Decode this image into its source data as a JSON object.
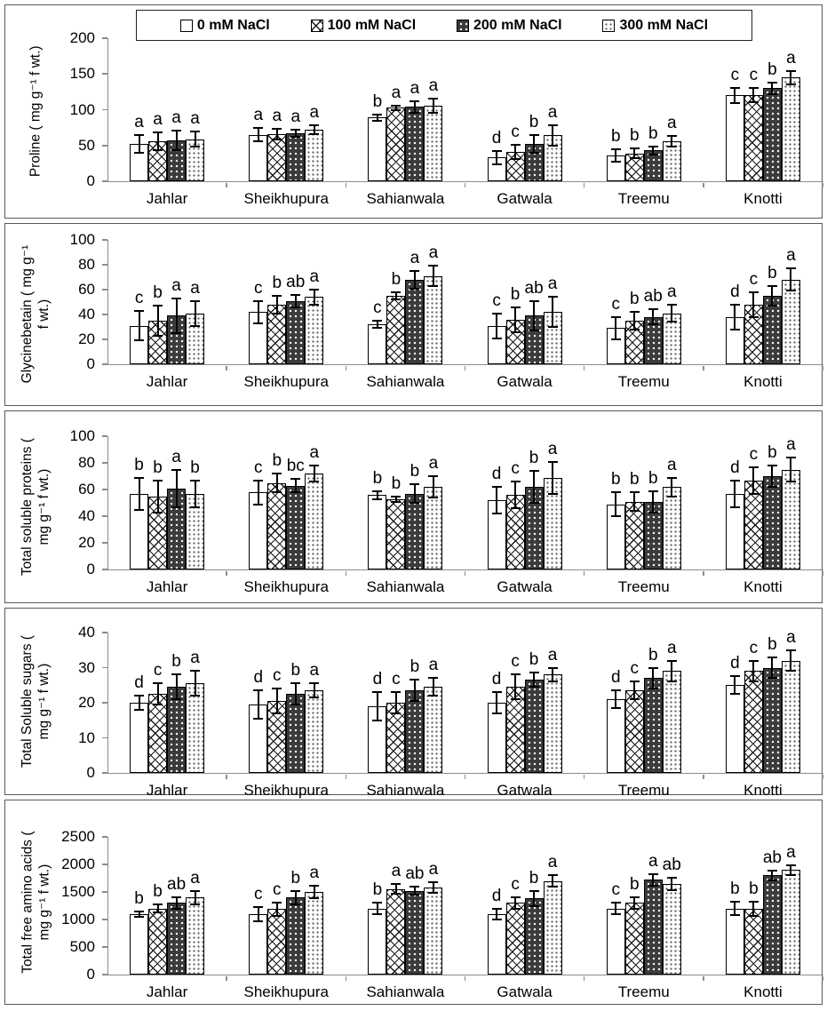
{
  "legend": {
    "items": [
      {
        "label": "0 mM NaCl",
        "pattern": "pat-plain"
      },
      {
        "label": "100 mM NaCl",
        "pattern": "pat-cross"
      },
      {
        "label": "200 mM NaCl",
        "pattern": "pat-darkdot"
      },
      {
        "label": "300 mM NaCl",
        "pattern": "pat-lightdot"
      }
    ],
    "position": "top"
  },
  "colors": {
    "bar_border": "#000000",
    "axis": "#8c8c8c",
    "dark_fill": "#3b3b3b",
    "background": "#ffffff"
  },
  "chart_data": [
    {
      "type": "bar",
      "title": "Proline",
      "ylabel_lines": [
        "Proline ( mg g⁻¹ f wt.)"
      ],
      "ylim": [
        0,
        200
      ],
      "yticks": [
        0,
        50,
        100,
        150,
        200
      ],
      "grid": false,
      "categories": [
        "Jahlar",
        "Sheikhupura",
        "Sahianwala",
        "Gatwala",
        "Treemu",
        "Knotti"
      ],
      "series": [
        {
          "name": "0 mM NaCl",
          "values": [
            52,
            65,
            89,
            33,
            36,
            120
          ],
          "errors": [
            12,
            9,
            4,
            9,
            9,
            11
          ],
          "letters": [
            "a",
            "a",
            "b",
            "d",
            "b",
            "c"
          ]
        },
        {
          "name": "100 mM NaCl",
          "values": [
            56,
            66,
            103,
            41,
            39,
            120
          ],
          "errors": [
            12,
            7,
            3,
            10,
            7,
            10
          ],
          "letters": [
            "a",
            "a",
            "a",
            "c",
            "b",
            "c"
          ]
        },
        {
          "name": "200 mM NaCl",
          "values": [
            57,
            67,
            104,
            52,
            43,
            130
          ],
          "errors": [
            14,
            5,
            8,
            12,
            6,
            8
          ],
          "letters": [
            "a",
            "a",
            "a",
            "b",
            "b",
            "b"
          ]
        },
        {
          "name": "300 mM NaCl",
          "values": [
            59,
            72,
            106,
            64,
            56,
            145
          ],
          "errors": [
            10,
            6,
            10,
            14,
            7,
            9
          ],
          "letters": [
            "a",
            "a",
            "a",
            "a",
            "a",
            "a"
          ]
        }
      ]
    },
    {
      "type": "bar",
      "title": "Glycinebetain",
      "ylabel_lines": [
        "Glycinebetain ( mg g⁻¹",
        "f wt.)"
      ],
      "ylim": [
        0,
        100
      ],
      "yticks": [
        0,
        20,
        40,
        60,
        80,
        100
      ],
      "grid": false,
      "categories": [
        "Jahlar",
        "Sheikhupura",
        "Sahianwala",
        "Gatwala",
        "Treemu",
        "Knotti"
      ],
      "series": [
        {
          "name": "0 mM NaCl",
          "values": [
            31,
            42,
            32,
            31,
            29,
            38
          ],
          "errors": [
            12,
            9,
            3,
            10,
            9,
            10
          ],
          "letters": [
            "c",
            "c",
            "c",
            "c",
            "c",
            "d"
          ]
        },
        {
          "name": "100 mM NaCl",
          "values": [
            35,
            48,
            55,
            36,
            35,
            48
          ],
          "errors": [
            12,
            7,
            3,
            10,
            7,
            10
          ],
          "letters": [
            "b",
            "b",
            "b",
            "b",
            "b",
            "c"
          ]
        },
        {
          "name": "200 mM NaCl",
          "values": [
            39,
            51,
            68,
            39,
            38,
            55
          ],
          "errors": [
            14,
            5,
            7,
            12,
            6,
            8
          ],
          "letters": [
            "a",
            "ab",
            "a",
            "ab",
            "ab",
            "b"
          ]
        },
        {
          "name": "300 mM NaCl",
          "values": [
            41,
            54,
            71,
            42,
            41,
            68
          ],
          "errors": [
            10,
            6,
            8,
            12,
            7,
            9
          ],
          "letters": [
            "a",
            "a",
            "a",
            "a",
            "a",
            "a"
          ]
        }
      ]
    },
    {
      "type": "bar",
      "title": "Total soluble proteins",
      "ylabel_lines": [
        "Total soluble proteins (",
        "mg g⁻¹ f wt.)"
      ],
      "ylim": [
        0,
        100
      ],
      "yticks": [
        0,
        20,
        40,
        60,
        80,
        100
      ],
      "grid": false,
      "categories": [
        "Jahlar",
        "Sheikhupura",
        "Sahianwala",
        "Gatwala",
        "Treemu",
        "Knotti"
      ],
      "series": [
        {
          "name": "0 mM NaCl",
          "values": [
            57,
            58,
            56,
            52,
            49,
            57
          ],
          "errors": [
            12,
            9,
            3,
            10,
            9,
            10
          ],
          "letters": [
            "b",
            "c",
            "b",
            "d",
            "b",
            "d"
          ]
        },
        {
          "name": "100 mM NaCl",
          "values": [
            55,
            65,
            53,
            56,
            51,
            67
          ],
          "errors": [
            12,
            7,
            2,
            10,
            7,
            10
          ],
          "letters": [
            "b",
            "b",
            "b",
            "c",
            "b",
            "c"
          ]
        },
        {
          "name": "200 mM NaCl",
          "values": [
            61,
            63,
            57,
            62,
            51,
            70
          ],
          "errors": [
            14,
            5,
            7,
            12,
            8,
            8
          ],
          "letters": [
            "a",
            "bc",
            "b",
            "b",
            "b",
            "b"
          ]
        },
        {
          "name": "300 mM NaCl",
          "values": [
            57,
            72,
            62,
            69,
            62,
            75
          ],
          "errors": [
            10,
            6,
            8,
            12,
            7,
            9
          ],
          "letters": [
            "b",
            "a",
            "a",
            "a",
            "a",
            "a"
          ]
        }
      ]
    },
    {
      "type": "bar",
      "title": "Total Soluble sugars",
      "ylabel_lines": [
        "Total Soluble sugars (",
        "mg g⁻¹ f wt.)"
      ],
      "ylim": [
        0,
        40
      ],
      "yticks": [
        0,
        10,
        20,
        30,
        40
      ],
      "grid": false,
      "categories": [
        "Jahlar",
        "Sheikhupura",
        "Sahianwala",
        "Gatwala",
        "Treemu",
        "Knotti"
      ],
      "series": [
        {
          "name": "0 mM NaCl",
          "values": [
            20,
            19.5,
            19,
            20,
            21,
            25
          ],
          "errors": [
            2,
            4,
            4,
            3,
            2.5,
            2.5
          ],
          "letters": [
            "d",
            "d",
            "d",
            "d",
            "d",
            "d"
          ]
        },
        {
          "name": "100 mM NaCl",
          "values": [
            22.5,
            20.5,
            20,
            24.5,
            23.5,
            29
          ],
          "errors": [
            3,
            3.5,
            3,
            3.5,
            2.5,
            3
          ],
          "letters": [
            "c",
            "c",
            "c",
            "c",
            "c",
            "c"
          ]
        },
        {
          "name": "200 mM NaCl",
          "values": [
            24.5,
            22.5,
            23.5,
            26.5,
            27,
            30
          ],
          "errors": [
            3.5,
            3,
            3,
            2,
            3,
            3
          ],
          "letters": [
            "b",
            "b",
            "b",
            "b",
            "b",
            "b"
          ]
        },
        {
          "name": "300 mM NaCl",
          "values": [
            25.5,
            23.5,
            24.5,
            28,
            29,
            32
          ],
          "errors": [
            3.5,
            2,
            2.5,
            2,
            3,
            3
          ],
          "letters": [
            "a",
            "a",
            "a",
            "a",
            "a",
            "a"
          ]
        }
      ]
    },
    {
      "type": "bar",
      "title": "Total free amino acids",
      "ylabel_lines": [
        "Total free amino acids (",
        "mg g⁻¹ f wt.)"
      ],
      "ylim": [
        0,
        2500
      ],
      "yticks": [
        0,
        500,
        1000,
        1500,
        2000,
        2500
      ],
      "grid": false,
      "categories": [
        "Jahlar",
        "Sheikhupura",
        "Sahianwala",
        "Gatwala",
        "Treemu",
        "Knotti"
      ],
      "series": [
        {
          "name": "0 mM NaCl",
          "values": [
            1100,
            1100,
            1200,
            1100,
            1200,
            1200
          ],
          "errors": [
            50,
            130,
            100,
            100,
            110,
            120
          ],
          "letters": [
            "b",
            "c",
            "b",
            "d",
            "c",
            "b"
          ]
        },
        {
          "name": "100 mM NaCl",
          "values": [
            1200,
            1190,
            1550,
            1300,
            1300,
            1200
          ],
          "errors": [
            70,
            120,
            90,
            110,
            100,
            130
          ],
          "letters": [
            "b",
            "c",
            "a",
            "c",
            "b",
            "b"
          ]
        },
        {
          "name": "200 mM NaCl",
          "values": [
            1300,
            1400,
            1520,
            1380,
            1720,
            1800
          ],
          "errors": [
            110,
            120,
            70,
            130,
            100,
            90
          ],
          "letters": [
            "ab",
            "b",
            "ab",
            "b",
            "a",
            "ab"
          ]
        },
        {
          "name": "300 mM NaCl",
          "values": [
            1400,
            1500,
            1580,
            1700,
            1650,
            1900
          ],
          "errors": [
            120,
            120,
            90,
            100,
            110,
            90
          ],
          "letters": [
            "a",
            "a",
            "a",
            "a",
            "ab",
            "a"
          ]
        }
      ]
    }
  ]
}
